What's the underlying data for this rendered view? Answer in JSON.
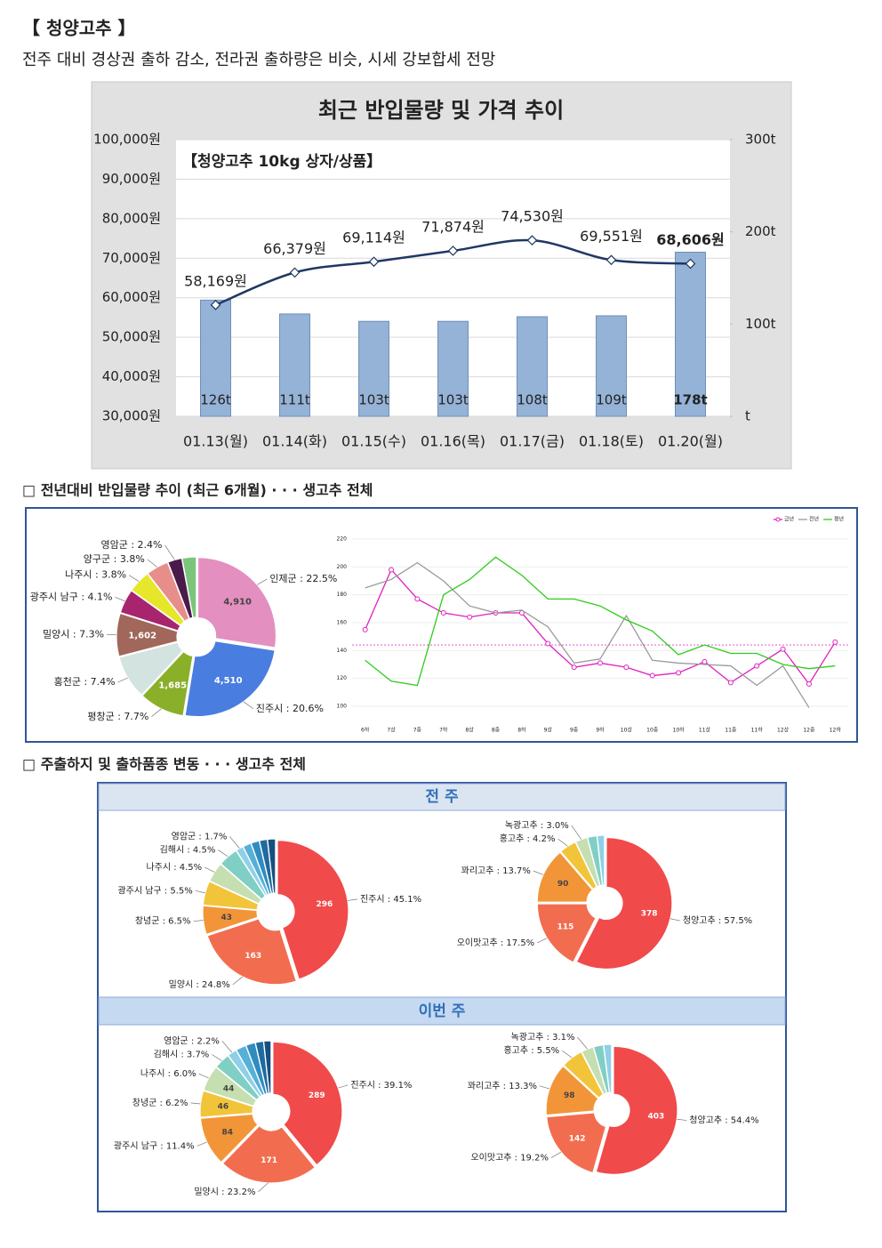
{
  "header": {
    "title": "【 청양고추 】",
    "subtitle": "전주 대비 경상권 출하 감소, 전라권 출하량은 비슷, 시세 강보합세 전망"
  },
  "sections": [
    "□ 전년대비 반입물량 추이 (최근 6개월) · · · 생고추 전체",
    "□ 주출하지 및 출하품종 변동 · · · 생고추 전체"
  ],
  "panels": [
    "전 주",
    "이번 주"
  ],
  "chart_data": [
    {
      "type": "combo",
      "title": "최근 반입물량 및 가격 추이",
      "subtitle": "【청양고추 10kg 상자/상품】",
      "categories": [
        "01.13(월)",
        "01.14(화)",
        "01.15(수)",
        "01.16(목)",
        "01.17(금)",
        "01.18(토)",
        "01.20(월)"
      ],
      "series": [
        {
          "type": "bar",
          "axis": "y2",
          "color": "#95b3d7",
          "values": [
            126,
            111,
            103,
            103,
            108,
            109,
            178
          ],
          "value_labels": [
            "126t",
            "111t",
            "103t",
            "103t",
            "108t",
            "109t",
            "178t"
          ]
        },
        {
          "type": "line",
          "color": "#1f3864",
          "values": [
            58169,
            66379,
            69114,
            71874,
            74530,
            69551,
            68606
          ],
          "value_labels": [
            "58,169원",
            "66,379원",
            "69,114원",
            "71,874원",
            "74,530원",
            "69,551원",
            "68,606원"
          ]
        }
      ],
      "ylim": [
        30000,
        100000
      ],
      "yticks": [
        {
          "value": 30000,
          "label": "30,000원"
        },
        {
          "value": 40000,
          "label": "40,000원"
        },
        {
          "value": 50000,
          "label": "50,000원"
        },
        {
          "value": 60000,
          "label": "60,000원"
        },
        {
          "value": 70000,
          "label": "70,000원"
        },
        {
          "value": 80000,
          "label": "80,000원"
        },
        {
          "value": 90000,
          "label": "90,000원"
        },
        {
          "value": 100000,
          "label": "100,000원"
        }
      ],
      "y2lim": [
        0,
        300
      ],
      "y2ticks": [
        {
          "value": 0,
          "label": "t"
        },
        {
          "value": 100,
          "label": "100t"
        },
        {
          "value": 200,
          "label": "200t"
        },
        {
          "value": 300,
          "label": "300t"
        }
      ],
      "grid": true
    },
    {
      "type": "donut",
      "labels": [
        "인제군 : 22.5%",
        "진주시 : 20.6%",
        "평창군 : 7.7%",
        "홍천군 : 7.4%",
        "밀양시 : 7.3%",
        "광주시 남구 : 4.1%",
        "나주시 : 3.8%",
        "양구군 : 3.8%",
        "영암군 : 2.4%",
        null
      ],
      "values": [
        22.5,
        20.6,
        7.7,
        7.4,
        7.3,
        4.1,
        3.8,
        3.8,
        2.4,
        2.4
      ],
      "counts": [
        {
          "value": 4910,
          "label": "4,910"
        },
        {
          "value": 4510,
          "label": "4,510"
        },
        {
          "value": 1685,
          "label": "1,685"
        },
        null,
        {
          "value": 1602,
          "label": "1,602"
        },
        null,
        null,
        null,
        null,
        null
      ],
      "colors": [
        "#e38fbf",
        "#4a7de0",
        "#8ab02a",
        "#d3e3e0",
        "#a0675a",
        "#a8246f",
        "#e6e62a",
        "#e88e8a",
        "#4a1a4a",
        "#7bc47b"
      ]
    },
    {
      "type": "line",
      "categories": [
        "6하",
        "7상",
        "7중",
        "7하",
        "8상",
        "8중",
        "8하",
        "9상",
        "9중",
        "9하",
        "10상",
        "10중",
        "10하",
        "11상",
        "11중",
        "11하",
        "12상",
        "12중",
        "12하"
      ],
      "series": [
        {
          "name": "금년",
          "color": "#e020c0",
          "marker": "circle",
          "values": [
            155,
            198,
            177,
            167,
            164,
            167,
            167,
            145,
            128,
            131,
            128,
            122,
            124,
            132,
            117,
            129,
            141,
            116,
            146
          ]
        },
        {
          "name": "전년",
          "color": "#9a9a9a",
          "values": [
            185,
            191,
            203,
            190,
            172,
            167,
            169,
            157,
            131,
            134,
            165,
            133,
            131,
            130,
            129,
            115,
            129,
            99,
            null
          ]
        },
        {
          "name": "평년",
          "color": "#2ecc1a",
          "values": [
            133,
            118,
            115,
            180,
            191,
            207,
            194,
            177,
            177,
            172,
            162,
            154,
            137,
            144,
            138,
            138,
            130,
            127,
            129
          ]
        }
      ],
      "reference_line": {
        "value": 144,
        "color": "#e040c0"
      },
      "ylim": [
        100,
        220
      ],
      "yticks": [
        100,
        120,
        140,
        160,
        180,
        200,
        220
      ],
      "grid": true,
      "legend": "top-right"
    },
    {
      "type": "donut",
      "labels": [
        "진주시 : 45.1%",
        "밀양시 : 24.8%",
        "창녕군 : 6.5%",
        "광주시 남구 : 5.5%",
        "나주시 : 4.5%",
        "김해시 : 4.5%",
        "영암군 : 1.7%",
        null,
        null,
        null,
        null
      ],
      "values": [
        45.1,
        24.8,
        6.5,
        5.5,
        4.5,
        4.5,
        1.7,
        1.9,
        1.9,
        1.8,
        1.8
      ],
      "counts": [
        296,
        163,
        43,
        null,
        null,
        null,
        null,
        null,
        null,
        null,
        null
      ],
      "colors": [
        "#f04a4a",
        "#f26d4f",
        "#f29538",
        "#f2c43a",
        "#c5dfb0",
        "#80cfc5",
        "#8fd0e8",
        "#56b0d8",
        "#2f8cc0",
        "#1f6aa0",
        "#164f80"
      ]
    },
    {
      "type": "donut",
      "labels": [
        "청양고추 : 57.5%",
        "오이맛고추 : 17.5%",
        "꽈리고추 : 13.7%",
        "홍고추 : 4.2%",
        "녹광고추 : 3.0%",
        null,
        null
      ],
      "values": [
        57.5,
        17.5,
        13.7,
        4.2,
        3.0,
        2.3,
        1.8
      ],
      "counts": [
        378,
        115,
        90,
        null,
        null,
        null,
        null
      ],
      "colors": [
        "#f04a4a",
        "#f26d4f",
        "#f29538",
        "#f2c43a",
        "#c5dfb0",
        "#80cfc5",
        "#8fd0e8"
      ]
    },
    {
      "type": "donut",
      "labels": [
        "진주시 : 39.1%",
        "밀양시 : 23.2%",
        "광주시 남구 : 11.4%",
        "창녕군 : 6.2%",
        "나주시 : 6.0%",
        "김해시 : 3.7%",
        "영암군 : 2.2%",
        null,
        null,
        null,
        null
      ],
      "values": [
        39.1,
        23.2,
        11.4,
        6.2,
        6.0,
        3.7,
        2.2,
        2.4,
        2.2,
        1.9,
        1.7
      ],
      "counts": [
        289,
        171,
        84,
        46,
        44,
        null,
        null,
        null,
        null,
        null,
        null
      ],
      "colors": [
        "#f04a4a",
        "#f26d4f",
        "#f29538",
        "#f2c43a",
        "#c5dfb0",
        "#80cfc5",
        "#8fd0e8",
        "#56b0d8",
        "#2f8cc0",
        "#1f6aa0",
        "#164f80"
      ]
    },
    {
      "type": "donut",
      "labels": [
        "청양고추 : 54.4%",
        "오이맛고추 : 19.2%",
        "꽈리고추 : 13.3%",
        "홍고추 : 5.5%",
        "녹광고추 : 3.1%",
        null,
        null
      ],
      "values": [
        54.4,
        19.2,
        13.3,
        5.5,
        3.1,
        2.5,
        2.0
      ],
      "counts": [
        403,
        142,
        98,
        null,
        null,
        null,
        null
      ],
      "colors": [
        "#f04a4a",
        "#f26d4f",
        "#f29538",
        "#f2c43a",
        "#c5dfb0",
        "#80cfc5",
        "#8fd0e8"
      ]
    }
  ]
}
